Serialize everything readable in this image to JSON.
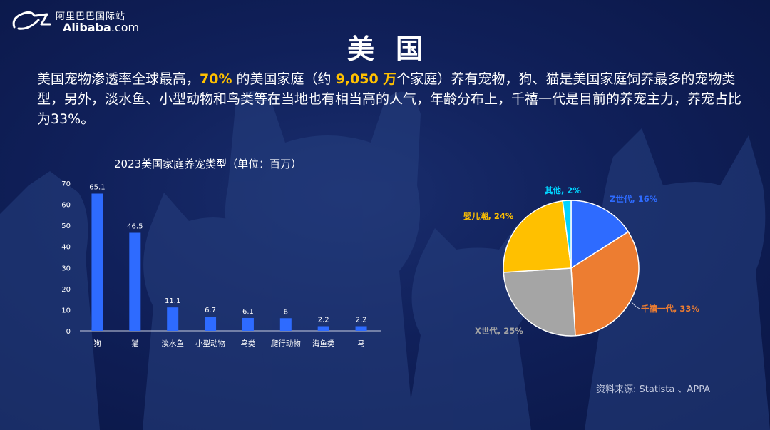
{
  "brand": {
    "name_cn": "阿里巴巴国际站",
    "name_en": "Alibaba",
    "name_suffix": ".com"
  },
  "title": "美国",
  "intro": {
    "p1": "美国宠物渗透率全球最高，",
    "hl1": "70%",
    "p2": " 的美国家庭（约 ",
    "hl2": "9,050 万",
    "p3": "个家庭）养有宠物，狗、猫是美国家庭饲养最多的宠物类型，另外，淡水鱼、小型动物和鸟类等在当地也有相当高的人气，年龄分布上，千禧一代是目前的养宠主力，养宠占比为33%。"
  },
  "source": "资料来源:   Statista 、APPA",
  "colors": {
    "bar": "#2e6bff",
    "highlight": "#ffc000",
    "background": "#10205a"
  },
  "chart_data": [
    {
      "type": "bar",
      "title": "2023美国家庭养宠类型（单位：百万）",
      "categories": [
        "狗",
        "猫",
        "淡水鱼",
        "小型动物",
        "鸟类",
        "爬行动物",
        "海鱼类",
        "马"
      ],
      "values": [
        65.1,
        46.5,
        11.1,
        6.7,
        6.1,
        6,
        2.2,
        2.2
      ],
      "value_labels": [
        "65.1",
        "46.5",
        "11.1",
        "6.7",
        "6.1",
        "6",
        "2.2",
        "2.2"
      ],
      "ylim": [
        0,
        70
      ],
      "yticks": [
        "0",
        "10",
        "20",
        "30",
        "40",
        "50",
        "60",
        "70"
      ],
      "grid": false,
      "legend": "none"
    },
    {
      "type": "pie",
      "slices": [
        {
          "name": "Z世代",
          "label": "Z世代, 16%",
          "value": 16,
          "color": "#2e6bff"
        },
        {
          "name": "千禧一代",
          "label": "千禧一代, 33%",
          "value": 33,
          "color": "#ed7d31"
        },
        {
          "name": "X世代",
          "label": "X世代, 25%",
          "value": 25,
          "color": "#a5a5a5"
        },
        {
          "name": "婴儿潮",
          "label": "婴儿潮, 24%",
          "value": 24,
          "color": "#ffc000"
        },
        {
          "name": "其他",
          "label": "其他, 2%",
          "value": 2,
          "color": "#00d4ff"
        }
      ],
      "label_colors": [
        "#2e6bff",
        "#ed7d31",
        "#a5a5a5",
        "#ffc000",
        "#00d4ff"
      ],
      "legend": "none"
    }
  ]
}
